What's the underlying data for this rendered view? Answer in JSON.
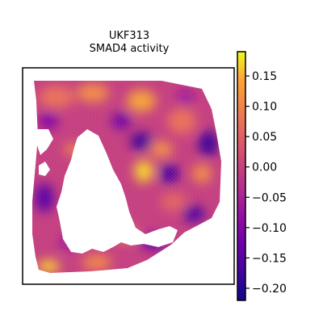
{
  "chart_data": {
    "type": "heatmap",
    "title": "UKF313",
    "subtitle": "SMAD4 activity",
    "xlabel": "",
    "ylabel": "",
    "colormap": "plasma",
    "colorbar": {
      "vmin": -0.22,
      "vmax": 0.19,
      "ticks": [
        0.15,
        0.1,
        0.05,
        0.0,
        -0.05,
        -0.1,
        -0.15,
        -0.2
      ],
      "tick_labels": [
        "0.15",
        "0.10",
        "0.05",
        "0.00",
        "−0.05",
        "−0.10",
        "−0.15",
        "−0.20"
      ]
    },
    "grid": false,
    "spatial_spots": "hexagonal tissue section with a large empty (white) region on the left side",
    "hotspots": [
      {
        "region": "center-left",
        "value": 0.15
      },
      {
        "region": "upper-middle",
        "value": 0.08
      },
      {
        "region": "lower-left corner",
        "value": 0.17
      },
      {
        "region": "right-middle",
        "value": 0.05
      }
    ],
    "coldspots": [
      {
        "region": "center",
        "value": -0.19
      },
      {
        "region": "right edge",
        "value": -0.2
      },
      {
        "region": "lower-left",
        "value": -0.18
      }
    ]
  }
}
